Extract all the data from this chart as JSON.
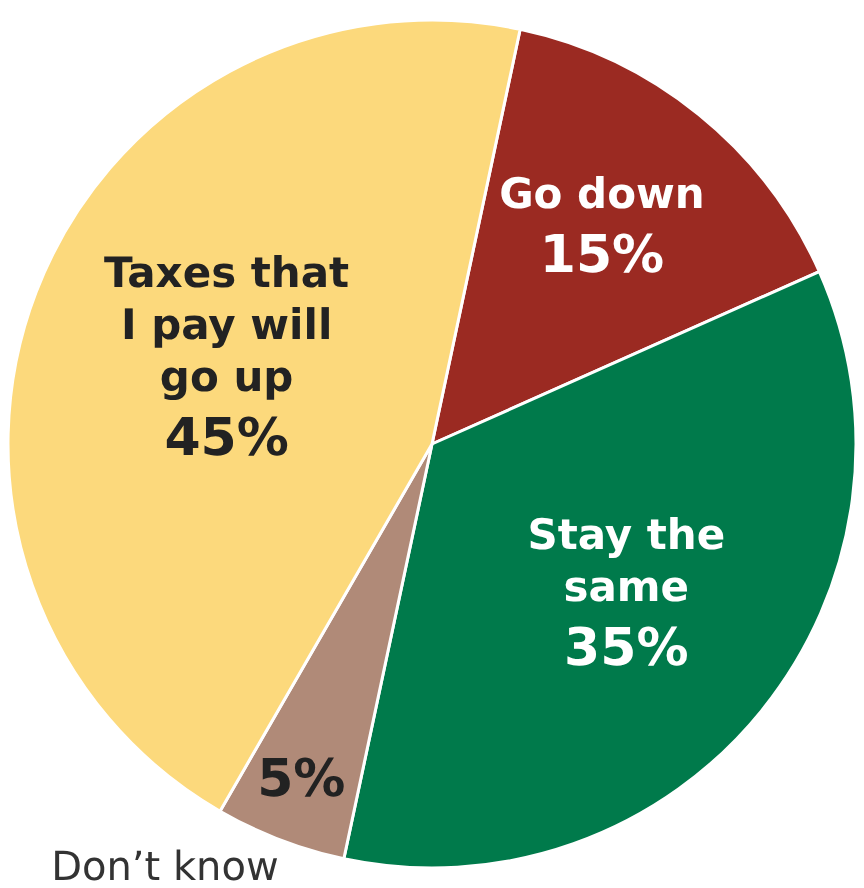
{
  "chart_data": {
    "type": "pie",
    "categories": [
      "Go down",
      "Stay the same",
      "Don’t know",
      "Taxes that I pay will go up"
    ],
    "values": [
      15,
      35,
      5,
      45
    ],
    "colors": [
      "#9b2a22",
      "#007a4b",
      "#b08a78",
      "#fcd97c"
    ],
    "value_labels": [
      "15%",
      "35%",
      "5%",
      "45%"
    ]
  }
}
